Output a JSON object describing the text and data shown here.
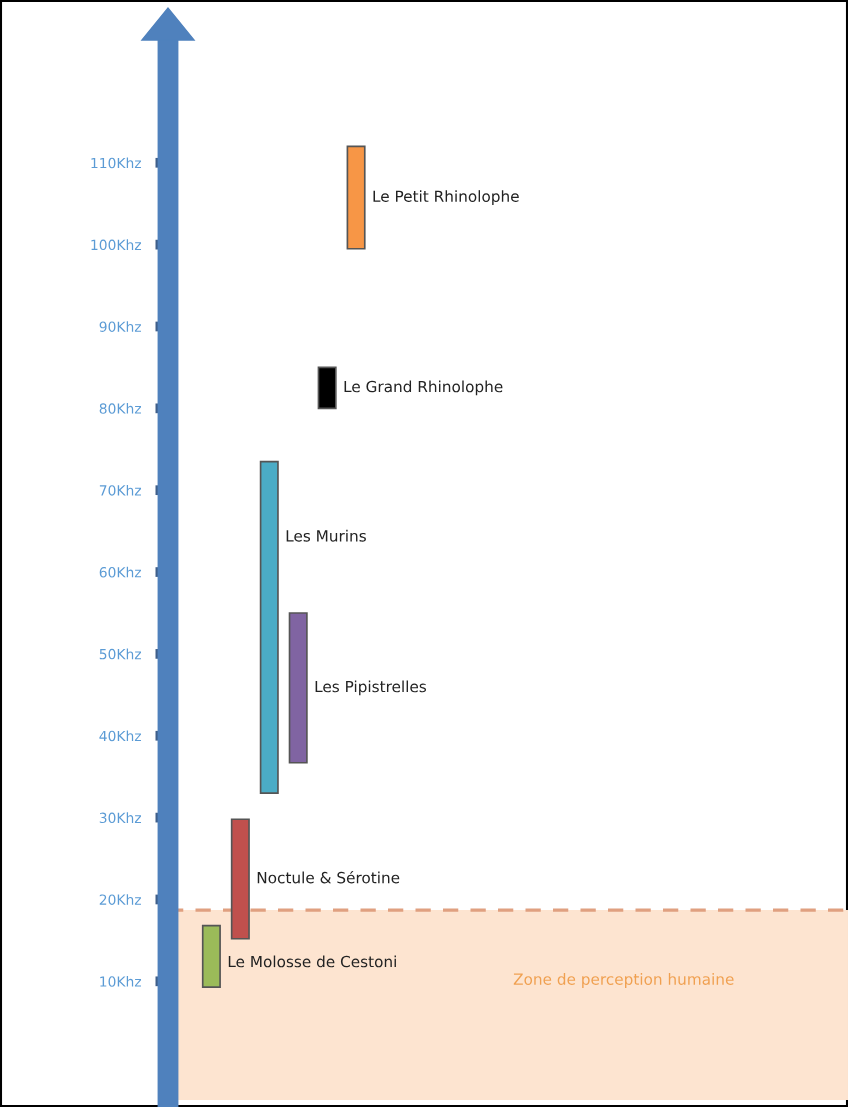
{
  "chart_data": {
    "type": "bar",
    "categories": [
      null,
      null,
      null,
      null,
      null,
      null
    ],
    "base": [
      9.3,
      15.2,
      33,
      36.7,
      80,
      99.5
    ],
    "values": [
      7.5,
      14.6,
      40.5,
      18.3,
      5,
      12.5
    ],
    "colors": [
      "#9bbb59",
      "#c0504d",
      "#4bacc6",
      "#8064a2",
      "#000000",
      "#f79646"
    ],
    "annotations": [
      "Le Molosse de Cestoni",
      "Noctule & Sérotine",
      "Les Murins",
      "Les Pipistrelles",
      "Le Grand Rhinolophe",
      "Le Petit Rhinolophe"
    ],
    "ylim": [
      -4.5,
      125
    ],
    "yticks": [
      {
        "value": 10,
        "label": "10Khz"
      },
      {
        "value": 20,
        "label": "20Khz"
      },
      {
        "value": 30,
        "label": "30Khz"
      },
      {
        "value": 40,
        "label": "40Khz"
      },
      {
        "value": 50,
        "label": "50Khz"
      },
      {
        "value": 60,
        "label": "60Khz"
      },
      {
        "value": 70,
        "label": "70Khz"
      },
      {
        "value": 80,
        "label": "80Khz"
      },
      {
        "value": 90,
        "label": "90Khz"
      },
      {
        "value": 100,
        "label": "100Khz"
      },
      {
        "value": 110,
        "label": "110Khz"
      }
    ],
    "bands": [
      {
        "axis": "y",
        "from": -4.5,
        "to": 18.7,
        "label": "Zone de perception humaine",
        "color": "#fde4d0"
      }
    ],
    "ref_lines": [
      {
        "axis": "y",
        "value": 18.7,
        "color": "#e0a080",
        "line_style": "dashed"
      }
    ],
    "tick_labels": "y",
    "grid": false,
    "legend": false
  }
}
